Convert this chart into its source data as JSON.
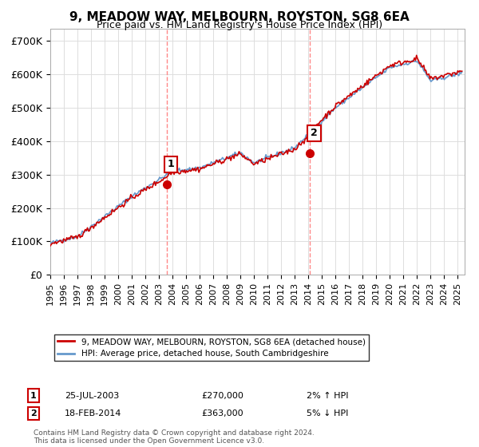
{
  "title": "9, MEADOW WAY, MELBOURN, ROYSTON, SG8 6EA",
  "subtitle": "Price paid vs. HM Land Registry's House Price Index (HPI)",
  "ylabel_ticks": [
    "£0",
    "£100K",
    "£200K",
    "£300K",
    "£400K",
    "£500K",
    "£600K",
    "£700K"
  ],
  "ylim": [
    0,
    735000
  ],
  "xlim_start": 1995.0,
  "xlim_end": 2025.5,
  "hpi_color": "#6699cc",
  "price_color": "#cc0000",
  "vline_color": "#ff8888",
  "marker1_date": 2003.56,
  "marker2_date": 2014.12,
  "marker1_price": 270000,
  "marker2_price": 363000,
  "legend_label1": "9, MEADOW WAY, MELBOURN, ROYSTON, SG8 6EA (detached house)",
  "legend_label2": "HPI: Average price, detached house, South Cambridgeshire",
  "table_row1": [
    "1",
    "25-JUL-2003",
    "£270,000",
    "2% ↑ HPI"
  ],
  "table_row2": [
    "2",
    "18-FEB-2014",
    "£363,000",
    "5% ↓ HPI"
  ],
  "footnote": "Contains HM Land Registry data © Crown copyright and database right 2024.\nThis data is licensed under the Open Government Licence v3.0.",
  "background_color": "#ffffff",
  "grid_color": "#dddddd"
}
